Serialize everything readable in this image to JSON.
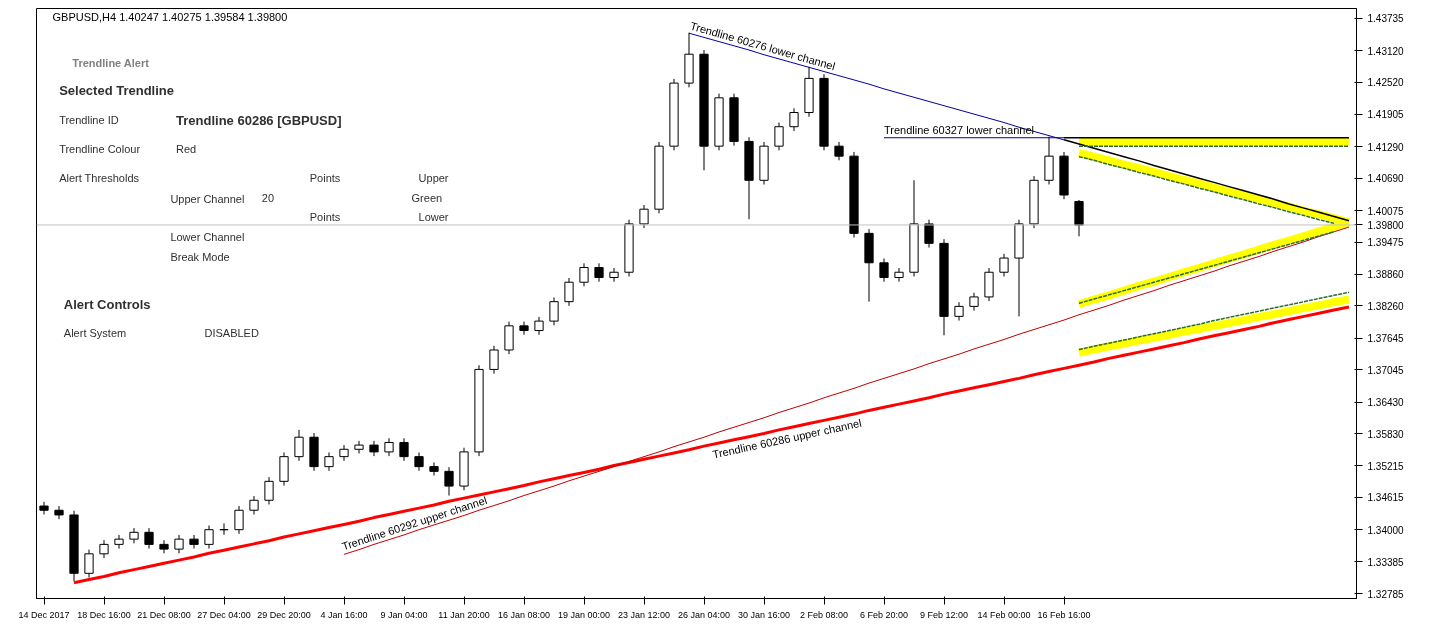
{
  "chart_data": {
    "type": "candlestick",
    "title": "GBPUSD,H4  1.40247 1.40275 1.39584 1.39800",
    "color": "#000000",
    "categories": [
      "14 Dec 2017",
      null,
      null,
      null,
      "18 Dec 16:00",
      null,
      null,
      null,
      "21 Dec 08:00",
      null,
      null,
      null,
      "27 Dec 04:00",
      null,
      null,
      null,
      "29 Dec 20:00",
      null,
      null,
      null,
      "4 Jan 16:00",
      null,
      null,
      null,
      "9 Jan 04:00",
      null,
      null,
      null,
      "11 Jan 20:00",
      null,
      null,
      null,
      "16 Jan 08:00",
      null,
      null,
      null,
      "19 Jan 00:00",
      null,
      null,
      null,
      "23 Jan 12:00",
      null,
      null,
      null,
      "26 Jan 04:00",
      null,
      null,
      null,
      "30 Jan 16:00",
      null,
      null,
      null,
      "2 Feb 08:00",
      null,
      null,
      null,
      "6 Feb 20:00",
      null,
      null,
      null,
      "9 Feb 12:00",
      null,
      null,
      null,
      "14 Feb 00:00",
      null,
      null,
      null,
      "16 Feb 16:00",
      null,
      null,
      null,
      null,
      null,
      null,
      null,
      null,
      null,
      null,
      null,
      null,
      null,
      null,
      null,
      null,
      null,
      null,
      null
    ],
    "ohlc": [
      [
        1.3445,
        1.3453,
        1.3429,
        1.3437
      ],
      [
        1.3437,
        1.3445,
        1.342,
        1.3428
      ],
      [
        1.3428,
        1.3436,
        1.3302,
        1.3317
      ],
      [
        1.3317,
        1.3362,
        1.3309,
        1.3354
      ],
      [
        1.3354,
        1.338,
        1.3346,
        1.3372
      ],
      [
        1.3372,
        1.339,
        1.3364,
        1.3382
      ],
      [
        1.3382,
        1.3403,
        1.3374,
        1.3395
      ],
      [
        1.3395,
        1.3403,
        1.3364,
        1.3372
      ],
      [
        1.3372,
        1.338,
        1.3355,
        1.3363
      ],
      [
        1.3363,
        1.339,
        1.3355,
        1.3382
      ],
      [
        1.3382,
        1.339,
        1.3364,
        1.3372
      ],
      [
        1.3372,
        1.3408,
        1.3364,
        1.34
      ],
      [
        1.34,
        1.3412,
        1.339,
        1.34
      ],
      [
        1.34,
        1.3445,
        1.3392,
        1.3437
      ],
      [
        1.3437,
        1.3464,
        1.3429,
        1.3456
      ],
      [
        1.3456,
        1.35,
        1.3448,
        1.3492
      ],
      [
        1.3492,
        1.3547,
        1.3484,
        1.3539
      ],
      [
        1.3539,
        1.359,
        1.3531,
        1.3576
      ],
      [
        1.3576,
        1.3584,
        1.3512,
        1.352
      ],
      [
        1.352,
        1.3547,
        1.3512,
        1.3539
      ],
      [
        1.3539,
        1.3561,
        1.3531,
        1.3553
      ],
      [
        1.3553,
        1.3569,
        1.3545,
        1.3561
      ],
      [
        1.3561,
        1.3569,
        1.354,
        1.3548
      ],
      [
        1.3548,
        1.3574,
        1.354,
        1.3566
      ],
      [
        1.3566,
        1.3574,
        1.3531,
        1.3539
      ],
      [
        1.3539,
        1.3547,
        1.3512,
        1.352
      ],
      [
        1.352,
        1.3528,
        1.3503,
        1.3511
      ],
      [
        1.3511,
        1.3519,
        1.3465,
        1.3483
      ],
      [
        1.3483,
        1.3556,
        1.3475,
        1.3548
      ],
      [
        1.3548,
        1.3713,
        1.354,
        1.3705
      ],
      [
        1.3705,
        1.375,
        1.3697,
        1.3742
      ],
      [
        1.3742,
        1.3796,
        1.3734,
        1.3788
      ],
      [
        1.3788,
        1.3796,
        1.3771,
        1.3779
      ],
      [
        1.3779,
        1.3805,
        1.3771,
        1.3797
      ],
      [
        1.3797,
        1.3842,
        1.3789,
        1.3834
      ],
      [
        1.3834,
        1.3879,
        1.3826,
        1.3871
      ],
      [
        1.3871,
        1.3907,
        1.3863,
        1.3899
      ],
      [
        1.3899,
        1.3907,
        1.3872,
        1.388
      ],
      [
        1.388,
        1.3898,
        1.3872,
        1.389
      ],
      [
        1.389,
        1.399,
        1.3882,
        1.3982
      ],
      [
        1.3982,
        1.4018,
        1.3974,
        1.401
      ],
      [
        1.401,
        1.4138,
        1.4002,
        1.413
      ],
      [
        1.413,
        1.4258,
        1.4122,
        1.425
      ],
      [
        1.425,
        1.4346,
        1.4242,
        1.4305
      ],
      [
        1.4305,
        1.4313,
        1.4084,
        1.413
      ],
      [
        1.413,
        1.423,
        1.4122,
        1.4222
      ],
      [
        1.4222,
        1.423,
        1.4131,
        1.4139
      ],
      [
        1.4139,
        1.4147,
        1.3991,
        1.4065
      ],
      [
        1.4065,
        1.4138,
        1.4057,
        1.413
      ],
      [
        1.413,
        1.4175,
        1.4122,
        1.4167
      ],
      [
        1.4167,
        1.4202,
        1.4159,
        1.4194
      ],
      [
        1.4194,
        1.4281,
        1.4186,
        1.4259
      ],
      [
        1.4259,
        1.4267,
        1.4122,
        1.413
      ],
      [
        1.413,
        1.4138,
        1.4103,
        1.4111
      ],
      [
        1.4111,
        1.4119,
        1.3956,
        1.3964
      ],
      [
        1.3964,
        1.3972,
        1.3834,
        1.3908
      ],
      [
        1.3908,
        1.3916,
        1.3872,
        1.388
      ],
      [
        1.388,
        1.3898,
        1.3872,
        1.389
      ],
      [
        1.389,
        1.4065,
        1.3882,
        1.3982
      ],
      [
        1.3982,
        1.399,
        1.3937,
        1.3945
      ],
      [
        1.3945,
        1.3953,
        1.377,
        1.3806
      ],
      [
        1.3806,
        1.3833,
        1.3798,
        1.3825
      ],
      [
        1.3825,
        1.3851,
        1.3817,
        1.3843
      ],
      [
        1.3843,
        1.3898,
        1.3835,
        1.389
      ],
      [
        1.389,
        1.3925,
        1.3882,
        1.3917
      ],
      [
        1.3917,
        1.399,
        1.3806,
        1.3982
      ],
      [
        1.3982,
        1.4073,
        1.3974,
        1.4065
      ],
      [
        1.4065,
        1.4148,
        1.4057,
        1.4111
      ],
      [
        1.4111,
        1.4119,
        1.4029,
        1.4037
      ],
      [
        1.40247,
        1.40275,
        1.39584,
        1.398
      ],
      null,
      null,
      null,
      null,
      null,
      null,
      null,
      null,
      null,
      null,
      null,
      null,
      null,
      null,
      null,
      null,
      null,
      null
    ],
    "series": [
      {
        "type": "line",
        "color": "#ffff00",
        "values": [
          null,
          null,
          null,
          null,
          null,
          null,
          null,
          null,
          null,
          null,
          null,
          null,
          null,
          null,
          null,
          null,
          null,
          null,
          null,
          null,
          null,
          null,
          null,
          null,
          null,
          null,
          null,
          null,
          null,
          null,
          null,
          null,
          null,
          null,
          null,
          null,
          null,
          null,
          null,
          null,
          null,
          null,
          null,
          null,
          null,
          null,
          null,
          null,
          null,
          null,
          null,
          null,
          null,
          null,
          null,
          null,
          null,
          null,
          null,
          null,
          null,
          null,
          null,
          null,
          null,
          null,
          null,
          null,
          null,
          1.4139,
          1.4139,
          1.4139,
          1.4139,
          1.4139,
          1.4139,
          1.4139,
          1.4139,
          1.4139,
          1.4139,
          1.4139,
          1.4139,
          1.4139,
          1.4139,
          1.4139,
          1.4139,
          1.4139,
          1.4139,
          1.4139
        ]
      },
      {
        "type": "line",
        "color": "#ffff00",
        "values": [
          null,
          null,
          null,
          null,
          null,
          null,
          null,
          null,
          null,
          null,
          null,
          null,
          null,
          null,
          null,
          null,
          null,
          null,
          null,
          null,
          null,
          null,
          null,
          null,
          null,
          null,
          null,
          null,
          null,
          null,
          null,
          null,
          null,
          null,
          null,
          null,
          null,
          null,
          null,
          null,
          null,
          null,
          null,
          null,
          null,
          null,
          null,
          null,
          null,
          null,
          null,
          null,
          null,
          null,
          null,
          null,
          null,
          null,
          null,
          null,
          null,
          null,
          null,
          null,
          null,
          null,
          null,
          null,
          null,
          1.4117,
          1.411,
          1.4103,
          1.4095,
          1.4088,
          1.4081,
          1.4073,
          1.4066,
          1.4059,
          1.4051,
          1.4044,
          1.4037,
          1.4029,
          1.4022,
          1.4015,
          1.4007,
          1.4,
          1.3993,
          1.3985
        ]
      },
      {
        "type": "line",
        "color": "#ffff00",
        "values": [
          null,
          null,
          null,
          null,
          null,
          null,
          null,
          null,
          null,
          null,
          null,
          null,
          null,
          null,
          null,
          null,
          null,
          null,
          null,
          null,
          null,
          null,
          null,
          null,
          null,
          null,
          null,
          null,
          null,
          null,
          null,
          null,
          null,
          null,
          null,
          null,
          null,
          null,
          null,
          null,
          null,
          null,
          null,
          null,
          null,
          null,
          null,
          null,
          null,
          null,
          null,
          null,
          null,
          null,
          null,
          null,
          null,
          null,
          null,
          null,
          null,
          null,
          null,
          null,
          null,
          null,
          null,
          null,
          null,
          1.3829,
          1.3838,
          1.3846,
          1.3855,
          1.3864,
          1.3872,
          1.3881,
          1.389,
          1.3898,
          1.3907,
          1.3916,
          1.3924,
          1.3933,
          1.3942,
          1.395,
          1.3959,
          1.3968,
          1.3976,
          1.3985
        ]
      },
      {
        "type": "line",
        "color": "#ffff00",
        "values": [
          null,
          null,
          null,
          null,
          null,
          null,
          null,
          null,
          null,
          null,
          null,
          null,
          null,
          null,
          null,
          null,
          null,
          null,
          null,
          null,
          null,
          null,
          null,
          null,
          null,
          null,
          null,
          null,
          null,
          null,
          null,
          null,
          null,
          null,
          null,
          null,
          null,
          null,
          null,
          null,
          null,
          null,
          null,
          null,
          null,
          null,
          null,
          null,
          null,
          null,
          null,
          null,
          null,
          null,
          null,
          null,
          null,
          null,
          null,
          null,
          null,
          null,
          null,
          null,
          null,
          null,
          null,
          null,
          null,
          1.3737,
          1.3743,
          1.3749,
          1.3754,
          1.376,
          1.3765,
          1.3771,
          1.3777,
          1.3782,
          1.3788,
          1.3793,
          1.3799,
          1.3805,
          1.381,
          1.3816,
          1.3822,
          1.3827,
          1.3833,
          1.3838
        ]
      },
      {
        "type": "line",
        "color": "#2e6b2e",
        "line_style": "dashed",
        "values": [
          null,
          null,
          null,
          null,
          null,
          null,
          null,
          null,
          null,
          null,
          null,
          null,
          null,
          null,
          null,
          null,
          null,
          null,
          null,
          null,
          null,
          null,
          null,
          null,
          null,
          null,
          null,
          null,
          null,
          null,
          null,
          null,
          null,
          null,
          null,
          null,
          null,
          null,
          null,
          null,
          null,
          null,
          null,
          null,
          null,
          null,
          null,
          null,
          null,
          null,
          null,
          null,
          null,
          null,
          null,
          null,
          null,
          null,
          null,
          null,
          null,
          null,
          null,
          null,
          null,
          null,
          null,
          null,
          null,
          1.413,
          1.413,
          1.413,
          1.413,
          1.413,
          1.413,
          1.413,
          1.413,
          1.413,
          1.413,
          1.413,
          1.413,
          1.413,
          1.413,
          1.413,
          1.413,
          1.413,
          1.413,
          1.413
        ]
      },
      {
        "type": "line",
        "color": "#2e6b2e",
        "line_style": "dashed",
        "values": [
          null,
          null,
          null,
          null,
          null,
          null,
          null,
          null,
          null,
          null,
          null,
          null,
          null,
          null,
          null,
          null,
          null,
          null,
          null,
          null,
          null,
          null,
          null,
          null,
          null,
          null,
          null,
          null,
          null,
          null,
          null,
          null,
          null,
          null,
          null,
          null,
          null,
          null,
          null,
          null,
          null,
          null,
          null,
          null,
          null,
          null,
          null,
          null,
          null,
          null,
          null,
          null,
          null,
          null,
          null,
          null,
          null,
          null,
          null,
          null,
          null,
          null,
          null,
          null,
          null,
          null,
          null,
          null,
          null,
          1.411,
          1.4103,
          1.4095,
          1.4088,
          1.408,
          1.4073,
          1.4065,
          1.4058,
          1.405,
          1.4043,
          1.4035,
          1.4028,
          1.402,
          1.4013,
          1.4005,
          1.3998,
          1.399,
          1.3983,
          null
        ]
      },
      {
        "type": "line",
        "color": "#2e6b2e",
        "line_style": "dashed",
        "values": [
          null,
          null,
          null,
          null,
          null,
          null,
          null,
          null,
          null,
          null,
          null,
          null,
          null,
          null,
          null,
          null,
          null,
          null,
          null,
          null,
          null,
          null,
          null,
          null,
          null,
          null,
          null,
          null,
          null,
          null,
          null,
          null,
          null,
          null,
          null,
          null,
          null,
          null,
          null,
          null,
          null,
          null,
          null,
          null,
          null,
          null,
          null,
          null,
          null,
          null,
          null,
          null,
          null,
          null,
          null,
          null,
          null,
          null,
          null,
          null,
          null,
          null,
          null,
          null,
          null,
          null,
          null,
          null,
          null,
          1.3831,
          1.3839,
          1.3847,
          1.3855,
          1.3863,
          1.3871,
          1.3879,
          1.3887,
          1.3895,
          1.3903,
          1.3911,
          1.3919,
          1.3927,
          1.3935,
          1.3943,
          1.3951,
          1.3959,
          1.3967,
          null
        ]
      },
      {
        "type": "line",
        "color": "#2e6b2e",
        "line_style": "dashed",
        "values": [
          null,
          null,
          null,
          null,
          null,
          null,
          null,
          null,
          null,
          null,
          null,
          null,
          null,
          null,
          null,
          null,
          null,
          null,
          null,
          null,
          null,
          null,
          null,
          null,
          null,
          null,
          null,
          null,
          null,
          null,
          null,
          null,
          null,
          null,
          null,
          null,
          null,
          null,
          null,
          null,
          null,
          null,
          null,
          null,
          null,
          null,
          null,
          null,
          null,
          null,
          null,
          null,
          null,
          null,
          null,
          null,
          null,
          null,
          null,
          null,
          null,
          null,
          null,
          null,
          null,
          null,
          null,
          null,
          null,
          1.3743,
          1.3749,
          1.3755,
          1.3761,
          1.3767,
          1.3773,
          1.3779,
          1.3785,
          1.3791,
          1.3798,
          1.3804,
          1.381,
          1.3816,
          1.3822,
          1.3828,
          1.3834,
          1.384,
          1.3846,
          1.3852
        ]
      },
      {
        "type": "line",
        "name": "Trendline 60286 upper channel",
        "color": "#ff0000",
        "values": [
          null,
          null,
          1.3299,
          1.3305,
          1.3311,
          1.3318,
          1.3324,
          1.333,
          1.3336,
          1.3342,
          1.3348,
          1.3355,
          1.3361,
          1.3367,
          1.3373,
          1.3379,
          1.3386,
          1.3392,
          1.3398,
          1.3404,
          1.341,
          1.3416,
          1.3423,
          1.3429,
          1.3435,
          1.3441,
          1.3447,
          1.3454,
          1.346,
          1.3466,
          1.3472,
          1.3478,
          1.3484,
          1.3491,
          1.3497,
          1.3503,
          1.3509,
          1.3515,
          1.3522,
          1.3528,
          1.3534,
          1.354,
          1.3546,
          1.3552,
          1.3559,
          1.3565,
          1.3571,
          1.3577,
          1.3583,
          1.359,
          1.3596,
          1.3602,
          1.3608,
          1.3614,
          1.362,
          1.3627,
          1.3633,
          1.3639,
          1.3645,
          1.3651,
          1.3658,
          1.3664,
          1.367,
          1.3676,
          1.3682,
          1.3688,
          1.3695,
          1.3701,
          1.3707,
          1.3713,
          1.3719,
          1.3726,
          1.3732,
          1.3738,
          1.3744,
          1.375,
          1.3756,
          1.3763,
          1.3769,
          1.3775,
          1.3781,
          1.3787,
          1.3794,
          1.38,
          1.3806,
          1.3812,
          1.3818,
          1.3824
        ]
      },
      {
        "type": "line",
        "name": "Trendline 60292 upper channel",
        "color": "#c00000",
        "values": [
          null,
          null,
          null,
          null,
          null,
          null,
          null,
          null,
          null,
          null,
          null,
          null,
          null,
          null,
          null,
          null,
          null,
          null,
          null,
          null,
          1.3353,
          1.3362,
          1.3372,
          1.3381,
          1.339,
          1.34,
          1.3409,
          1.3418,
          1.3427,
          1.3437,
          1.3446,
          1.3455,
          1.3465,
          1.3474,
          1.3483,
          1.3493,
          1.3502,
          1.3511,
          1.352,
          1.353,
          1.3539,
          1.3548,
          1.3558,
          1.3567,
          1.3576,
          1.3586,
          1.3595,
          1.3604,
          1.3613,
          1.3623,
          1.3632,
          1.3641,
          1.3651,
          1.366,
          1.3669,
          1.3679,
          1.3688,
          1.3697,
          1.3706,
          1.3716,
          1.3725,
          1.3734,
          1.3744,
          1.3753,
          1.3762,
          1.3772,
          1.3781,
          1.379,
          1.3799,
          1.3809,
          1.3818,
          1.3827,
          1.3837,
          1.3846,
          1.3855,
          1.3865,
          1.3874,
          1.3883,
          1.3892,
          1.3902,
          1.3911,
          1.392,
          1.393,
          1.3939,
          1.3948,
          1.3958,
          1.3967,
          1.3976
        ]
      },
      {
        "type": "line",
        "name": "Trendline 60276 lower channel",
        "color": "#0000a0",
        "values": [
          null,
          null,
          null,
          null,
          null,
          null,
          null,
          null,
          null,
          null,
          null,
          null,
          null,
          null,
          null,
          null,
          null,
          null,
          null,
          null,
          null,
          null,
          null,
          null,
          null,
          null,
          null,
          null,
          null,
          null,
          null,
          null,
          null,
          null,
          null,
          null,
          null,
          null,
          null,
          null,
          null,
          null,
          null,
          1.4345,
          1.4337,
          1.4329,
          1.4321,
          1.4313,
          1.4304,
          1.4296,
          1.4288,
          1.428,
          1.4272,
          1.4264,
          1.4256,
          1.4248,
          1.4239,
          1.4231,
          1.4223,
          1.4215,
          1.4207,
          1.4199,
          1.4191,
          1.4183,
          1.4175,
          1.4166,
          1.4158,
          1.415,
          1.4142,
          null,
          null,
          null,
          null,
          null,
          null,
          null,
          null,
          null,
          null,
          null,
          null,
          null,
          null,
          null,
          null,
          null,
          null,
          null
        ]
      },
      {
        "type": "line",
        "color": "#000000",
        "values": [
          null,
          null,
          null,
          null,
          null,
          null,
          null,
          null,
          null,
          null,
          null,
          null,
          null,
          null,
          null,
          null,
          null,
          null,
          null,
          null,
          null,
          null,
          null,
          null,
          null,
          null,
          null,
          null,
          null,
          null,
          null,
          null,
          null,
          null,
          null,
          null,
          null,
          null,
          null,
          null,
          null,
          null,
          null,
          null,
          null,
          null,
          null,
          null,
          null,
          null,
          null,
          null,
          null,
          null,
          null,
          null,
          null,
          null,
          null,
          null,
          null,
          null,
          null,
          null,
          null,
          null,
          null,
          null,
          1.4142,
          1.4134,
          1.4126,
          1.4118,
          1.411,
          1.4102,
          1.4093,
          1.4085,
          1.4077,
          1.4069,
          1.4061,
          1.4053,
          1.4045,
          1.4037,
          1.4029,
          1.402,
          1.4012,
          1.4004,
          1.3996,
          1.3988
        ]
      },
      {
        "type": "line",
        "name": "Trendline 60327 lower channel",
        "color": "#0000a0",
        "values": [
          null,
          null,
          null,
          null,
          null,
          null,
          null,
          null,
          null,
          null,
          null,
          null,
          null,
          null,
          null,
          null,
          null,
          null,
          null,
          null,
          null,
          null,
          null,
          null,
          null,
          null,
          null,
          null,
          null,
          null,
          null,
          null,
          null,
          null,
          null,
          null,
          null,
          null,
          null,
          null,
          null,
          null,
          null,
          null,
          null,
          null,
          null,
          null,
          null,
          null,
          null,
          null,
          null,
          null,
          null,
          null,
          1.4146,
          1.4146,
          1.4146,
          1.4146,
          1.4146,
          1.4146,
          1.4146,
          1.4146,
          1.4146,
          1.4146,
          1.4146,
          1.4146,
          1.4146,
          null,
          null,
          null,
          null,
          null,
          null,
          null,
          null,
          null,
          null,
          null,
          null,
          null,
          null,
          null,
          null,
          null,
          null,
          null
        ]
      },
      {
        "type": "line",
        "color": "#000000",
        "values": [
          null,
          null,
          null,
          null,
          null,
          null,
          null,
          null,
          null,
          null,
          null,
          null,
          null,
          null,
          null,
          null,
          null,
          null,
          null,
          null,
          null,
          null,
          null,
          null,
          null,
          null,
          null,
          null,
          null,
          null,
          null,
          null,
          null,
          null,
          null,
          null,
          null,
          null,
          null,
          null,
          null,
          null,
          null,
          null,
          null,
          null,
          null,
          null,
          null,
          null,
          null,
          null,
          null,
          null,
          null,
          null,
          null,
          null,
          null,
          null,
          null,
          null,
          null,
          null,
          null,
          null,
          null,
          null,
          1.4146,
          1.4146,
          1.4146,
          1.4146,
          1.4146,
          1.4146,
          1.4146,
          1.4146,
          1.4146,
          1.4146,
          1.4146,
          1.4146,
          1.4146,
          1.4146,
          1.4146,
          1.4146,
          1.4146,
          1.4146,
          1.4146,
          1.4146
        ]
      }
    ],
    "ylim": [
      1.3269,
      1.4392
    ],
    "yticks": [
      1.43735,
      {
        "value": 1.4312,
        "label": "1.43120"
      },
      {
        "value": 1.4252,
        "label": "1.42520"
      },
      1.41905,
      {
        "value": 1.4129,
        "label": "1.41290"
      },
      {
        "value": 1.4069,
        "label": "1.40690"
      },
      1.40075,
      1.39475,
      {
        "value": 1.3886,
        "label": "1.38860"
      },
      {
        "value": 1.3826,
        "label": "1.38260"
      },
      1.37645,
      1.37045,
      {
        "value": 1.3643,
        "label": "1.36430"
      },
      {
        "value": 1.3583,
        "label": "1.35830"
      },
      1.35215,
      1.34615,
      {
        "value": 1.34,
        "label": "1.34000"
      },
      1.33385,
      1.32785
    ],
    "ref_lines": [
      {
        "axis": "y",
        "value": 1.398,
        "label": "1.39800",
        "color": "#c0c0c0"
      }
    ],
    "annotations": [
      "Trendline Alert",
      "Selected Trendline",
      "Trendline ID",
      "Trendline 60286 [GBPUSD]",
      "Trendline Colour",
      "Red",
      "Alert Thresholds",
      "Points",
      "Upper",
      "Upper Channel",
      "20",
      "Green",
      "Points",
      "Lower",
      "Lower Channel",
      "Break Mode",
      "Alert Controls",
      "Alert System",
      "DISABLED"
    ]
  }
}
